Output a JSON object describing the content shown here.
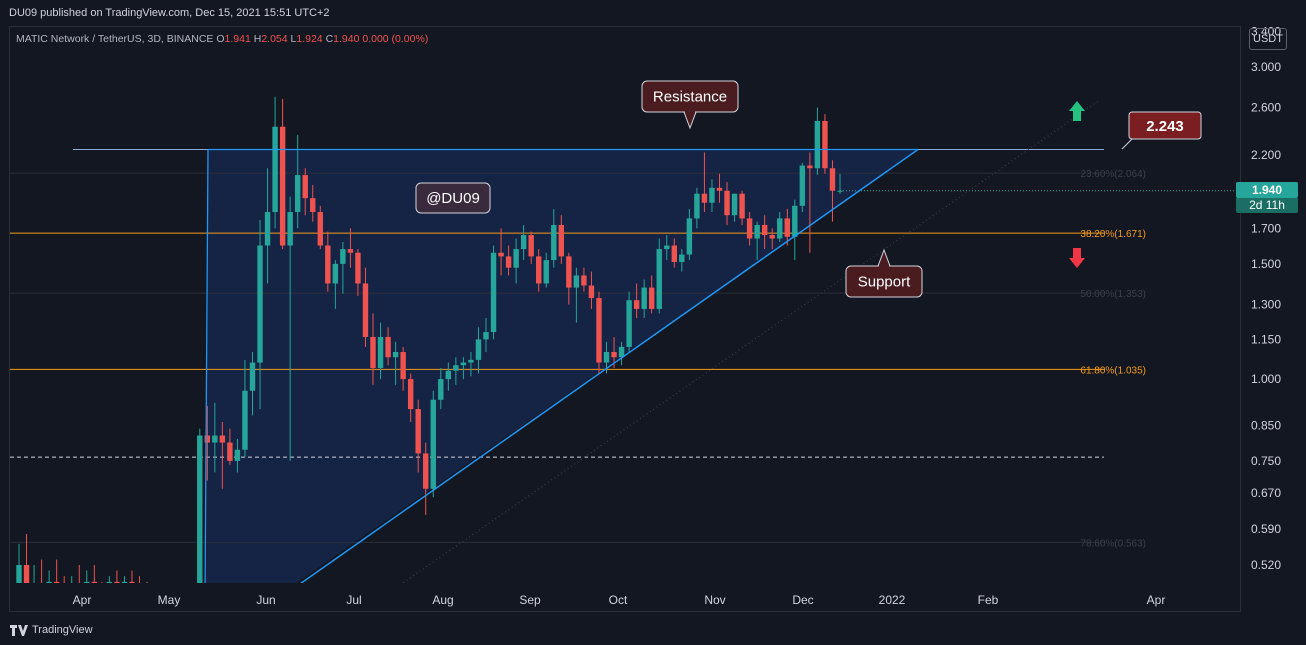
{
  "header": {
    "published": "DU09 published on TradingView.com, Dec 15, 2021 15:51 UTC+2"
  },
  "legend": {
    "symbol": "MATIC Network / TetherUS, 3D, BINANCE",
    "o_label": "O",
    "o": "1.941",
    "h_label": "H",
    "h": "2.054",
    "l_label": "L",
    "l": "1.924",
    "c_label": "C",
    "c": "1.940",
    "chg": "0.000 (0.00%)"
  },
  "currency": "USDT",
  "last_price": "1.940",
  "countdown": "2d 11h",
  "footer": {
    "brand": "TradingView"
  },
  "colors": {
    "bg": "#131722",
    "up": "#26a69a",
    "down": "#ef5350",
    "trend": "#2196f3",
    "fib": "#f59c1a",
    "callout": "#4a1c1f"
  },
  "icons": [
    "arrow-up-icon",
    "arrow-down-icon",
    "tradingview-logo-icon"
  ],
  "chart_data": {
    "type": "candlestick",
    "scale": "log",
    "ylim": [
      0.48,
      3.5
    ],
    "y_ticks": [
      "3.400",
      "3.000",
      "2.600",
      "2.200",
      "1.700",
      "1.500",
      "1.300",
      "1.150",
      "1.000",
      "0.850",
      "0.750",
      "0.670",
      "0.590",
      "0.520"
    ],
    "x_ticks": [
      "Apr",
      "May",
      "Jun",
      "Jul",
      "Aug",
      "Sep",
      "Oct",
      "Nov",
      "Dec",
      "2022",
      "Feb",
      "Apr"
    ],
    "fib_levels": [
      {
        "label": "23.60%(2.064)",
        "value": 2.064
      },
      {
        "label": "38.20%(1.671)",
        "value": 1.671
      },
      {
        "label": "50.00%(1.353)",
        "value": 1.353
      },
      {
        "label": "61.80%(1.035)",
        "value": 1.035
      },
      {
        "label": "78.60%(0.563)",
        "value": 0.563
      }
    ],
    "resistance_level": 2.243,
    "dashed_level": 0.76,
    "annotations": {
      "resistance": "Resistance",
      "support": "Support",
      "watermark": "@DU09",
      "target": "2.243"
    },
    "candles": [
      {
        "o": 0.45,
        "h": 0.56,
        "l": 0.43,
        "c": 0.52
      },
      {
        "o": 0.52,
        "h": 0.58,
        "l": 0.45,
        "c": 0.47
      },
      {
        "o": 0.47,
        "h": 0.52,
        "l": 0.44,
        "c": 0.48
      },
      {
        "o": 0.48,
        "h": 0.53,
        "l": 0.45,
        "c": 0.46
      },
      {
        "o": 0.46,
        "h": 0.51,
        "l": 0.44,
        "c": 0.49
      },
      {
        "o": 0.49,
        "h": 0.53,
        "l": 0.46,
        "c": 0.47
      },
      {
        "o": 0.47,
        "h": 0.5,
        "l": 0.42,
        "c": 0.45
      },
      {
        "o": 0.45,
        "h": 0.5,
        "l": 0.43,
        "c": 0.48
      },
      {
        "o": 0.48,
        "h": 0.52,
        "l": 0.46,
        "c": 0.47
      },
      {
        "o": 0.47,
        "h": 0.51,
        "l": 0.45,
        "c": 0.49
      },
      {
        "o": 0.49,
        "h": 0.52,
        "l": 0.46,
        "c": 0.48
      },
      {
        "o": 0.48,
        "h": 0.49,
        "l": 0.44,
        "c": 0.46
      },
      {
        "o": 0.46,
        "h": 0.5,
        "l": 0.44,
        "c": 0.49
      },
      {
        "o": 0.49,
        "h": 0.51,
        "l": 0.46,
        "c": 0.47
      },
      {
        "o": 0.47,
        "h": 0.5,
        "l": 0.45,
        "c": 0.49
      },
      {
        "o": 0.49,
        "h": 0.51,
        "l": 0.46,
        "c": 0.48
      },
      {
        "o": 0.48,
        "h": 0.5,
        "l": 0.45,
        "c": 0.47
      },
      {
        "o": 0.47,
        "h": 0.49,
        "l": 0.44,
        "c": 0.46
      },
      {
        "o": 0.46,
        "h": 0.48,
        "l": 0.43,
        "c": 0.47
      },
      {
        "o": 0.47,
        "h": 0.48,
        "l": 0.44,
        "c": 0.45
      },
      {
        "o": 0.45,
        "h": 0.47,
        "l": 0.42,
        "c": 0.46
      },
      {
        "o": 0.46,
        "h": 0.47,
        "l": 0.43,
        "c": 0.44
      },
      {
        "o": 0.44,
        "h": 0.46,
        "l": 0.42,
        "c": 0.45
      },
      {
        "o": 0.45,
        "h": 0.46,
        "l": 0.43,
        "c": 0.45
      },
      {
        "o": 0.45,
        "h": 0.84,
        "l": 0.44,
        "c": 0.82
      },
      {
        "o": 0.82,
        "h": 0.91,
        "l": 0.7,
        "c": 0.8
      },
      {
        "o": 0.8,
        "h": 0.92,
        "l": 0.72,
        "c": 0.82
      },
      {
        "o": 0.82,
        "h": 0.86,
        "l": 0.68,
        "c": 0.8
      },
      {
        "o": 0.8,
        "h": 0.84,
        "l": 0.74,
        "c": 0.75
      },
      {
        "o": 0.75,
        "h": 0.81,
        "l": 0.72,
        "c": 0.78
      },
      {
        "o": 0.78,
        "h": 1.07,
        "l": 0.76,
        "c": 0.96
      },
      {
        "o": 0.96,
        "h": 1.1,
        "l": 0.88,
        "c": 1.06
      },
      {
        "o": 1.06,
        "h": 1.75,
        "l": 0.9,
        "c": 1.6
      },
      {
        "o": 1.6,
        "h": 2.1,
        "l": 1.4,
        "c": 1.8
      },
      {
        "o": 1.8,
        "h": 2.7,
        "l": 1.7,
        "c": 2.43
      },
      {
        "o": 2.43,
        "h": 2.68,
        "l": 1.58,
        "c": 1.6
      },
      {
        "o": 1.6,
        "h": 1.9,
        "l": 0.75,
        "c": 1.8
      },
      {
        "o": 1.8,
        "h": 2.36,
        "l": 1.7,
        "c": 2.05
      },
      {
        "o": 2.05,
        "h": 2.1,
        "l": 1.78,
        "c": 1.89
      },
      {
        "o": 1.89,
        "h": 1.98,
        "l": 1.74,
        "c": 1.8
      },
      {
        "o": 1.8,
        "h": 1.84,
        "l": 1.58,
        "c": 1.6
      },
      {
        "o": 1.6,
        "h": 1.68,
        "l": 1.36,
        "c": 1.4
      },
      {
        "o": 1.4,
        "h": 1.52,
        "l": 1.28,
        "c": 1.5
      },
      {
        "o": 1.5,
        "h": 1.62,
        "l": 1.35,
        "c": 1.58
      },
      {
        "o": 1.58,
        "h": 1.7,
        "l": 1.48,
        "c": 1.56
      },
      {
        "o": 1.56,
        "h": 1.58,
        "l": 1.34,
        "c": 1.4
      },
      {
        "o": 1.4,
        "h": 1.48,
        "l": 1.12,
        "c": 1.16
      },
      {
        "o": 1.16,
        "h": 1.26,
        "l": 0.98,
        "c": 1.04
      },
      {
        "o": 1.04,
        "h": 1.22,
        "l": 1.0,
        "c": 1.16
      },
      {
        "o": 1.16,
        "h": 1.2,
        "l": 1.05,
        "c": 1.08
      },
      {
        "o": 1.08,
        "h": 1.14,
        "l": 0.98,
        "c": 1.1
      },
      {
        "o": 1.1,
        "h": 1.12,
        "l": 0.96,
        "c": 1.0
      },
      {
        "o": 1.0,
        "h": 1.02,
        "l": 0.86,
        "c": 0.9
      },
      {
        "o": 0.9,
        "h": 0.93,
        "l": 0.72,
        "c": 0.77
      },
      {
        "o": 0.77,
        "h": 0.8,
        "l": 0.62,
        "c": 0.68
      },
      {
        "o": 0.68,
        "h": 0.96,
        "l": 0.66,
        "c": 0.93
      },
      {
        "o": 0.93,
        "h": 1.04,
        "l": 0.9,
        "c": 1.0
      },
      {
        "o": 1.0,
        "h": 1.06,
        "l": 0.96,
        "c": 1.03
      },
      {
        "o": 1.03,
        "h": 1.08,
        "l": 0.98,
        "c": 1.05
      },
      {
        "o": 1.05,
        "h": 1.08,
        "l": 1.0,
        "c": 1.06
      },
      {
        "o": 1.06,
        "h": 1.1,
        "l": 1.01,
        "c": 1.07
      },
      {
        "o": 1.07,
        "h": 1.2,
        "l": 1.02,
        "c": 1.15
      },
      {
        "o": 1.15,
        "h": 1.24,
        "l": 1.1,
        "c": 1.18
      },
      {
        "o": 1.18,
        "h": 1.6,
        "l": 1.15,
        "c": 1.56
      },
      {
        "o": 1.56,
        "h": 1.7,
        "l": 1.44,
        "c": 1.54
      },
      {
        "o": 1.54,
        "h": 1.6,
        "l": 1.44,
        "c": 1.48
      },
      {
        "o": 1.48,
        "h": 1.64,
        "l": 1.4,
        "c": 1.58
      },
      {
        "o": 1.58,
        "h": 1.72,
        "l": 1.52,
        "c": 1.66
      },
      {
        "o": 1.66,
        "h": 1.68,
        "l": 1.5,
        "c": 1.54
      },
      {
        "o": 1.54,
        "h": 1.58,
        "l": 1.36,
        "c": 1.4
      },
      {
        "o": 1.4,
        "h": 1.56,
        "l": 1.38,
        "c": 1.52
      },
      {
        "o": 1.52,
        "h": 1.82,
        "l": 1.48,
        "c": 1.72
      },
      {
        "o": 1.72,
        "h": 1.78,
        "l": 1.5,
        "c": 1.54
      },
      {
        "o": 1.54,
        "h": 1.56,
        "l": 1.3,
        "c": 1.38
      },
      {
        "o": 1.38,
        "h": 1.48,
        "l": 1.22,
        "c": 1.44
      },
      {
        "o": 1.44,
        "h": 1.48,
        "l": 1.36,
        "c": 1.39
      },
      {
        "o": 1.39,
        "h": 1.46,
        "l": 1.28,
        "c": 1.33
      },
      {
        "o": 1.33,
        "h": 1.36,
        "l": 1.02,
        "c": 1.06
      },
      {
        "o": 1.06,
        "h": 1.14,
        "l": 1.02,
        "c": 1.1
      },
      {
        "o": 1.1,
        "h": 1.16,
        "l": 1.04,
        "c": 1.08
      },
      {
        "o": 1.08,
        "h": 1.14,
        "l": 1.05,
        "c": 1.12
      },
      {
        "o": 1.12,
        "h": 1.36,
        "l": 1.1,
        "c": 1.32
      },
      {
        "o": 1.32,
        "h": 1.4,
        "l": 1.24,
        "c": 1.28
      },
      {
        "o": 1.28,
        "h": 1.42,
        "l": 1.24,
        "c": 1.38
      },
      {
        "o": 1.38,
        "h": 1.44,
        "l": 1.26,
        "c": 1.28
      },
      {
        "o": 1.28,
        "h": 1.64,
        "l": 1.26,
        "c": 1.58
      },
      {
        "o": 1.58,
        "h": 1.66,
        "l": 1.52,
        "c": 1.6
      },
      {
        "o": 1.6,
        "h": 1.64,
        "l": 1.48,
        "c": 1.51
      },
      {
        "o": 1.51,
        "h": 1.58,
        "l": 1.46,
        "c": 1.55
      },
      {
        "o": 1.55,
        "h": 1.82,
        "l": 1.52,
        "c": 1.76
      },
      {
        "o": 1.76,
        "h": 1.96,
        "l": 1.7,
        "c": 1.92
      },
      {
        "o": 1.92,
        "h": 2.22,
        "l": 1.8,
        "c": 1.86
      },
      {
        "o": 1.86,
        "h": 2.02,
        "l": 1.8,
        "c": 1.96
      },
      {
        "o": 1.96,
        "h": 2.06,
        "l": 1.86,
        "c": 1.94
      },
      {
        "o": 1.94,
        "h": 2.0,
        "l": 1.72,
        "c": 1.78
      },
      {
        "o": 1.78,
        "h": 1.92,
        "l": 1.74,
        "c": 1.92
      },
      {
        "o": 1.92,
        "h": 1.94,
        "l": 1.72,
        "c": 1.76
      },
      {
        "o": 1.76,
        "h": 1.8,
        "l": 1.6,
        "c": 1.64
      },
      {
        "o": 1.64,
        "h": 1.74,
        "l": 1.52,
        "c": 1.72
      },
      {
        "o": 1.72,
        "h": 1.78,
        "l": 1.58,
        "c": 1.66
      },
      {
        "o": 1.66,
        "h": 1.7,
        "l": 1.58,
        "c": 1.64
      },
      {
        "o": 1.64,
        "h": 1.8,
        "l": 1.62,
        "c": 1.76
      },
      {
        "o": 1.76,
        "h": 1.82,
        "l": 1.6,
        "c": 1.65
      },
      {
        "o": 1.65,
        "h": 1.88,
        "l": 1.52,
        "c": 1.84
      },
      {
        "o": 1.84,
        "h": 2.14,
        "l": 1.8,
        "c": 2.12
      },
      {
        "o": 2.12,
        "h": 2.22,
        "l": 1.56,
        "c": 2.1
      },
      {
        "o": 2.1,
        "h": 2.6,
        "l": 2.05,
        "c": 2.48
      },
      {
        "o": 2.48,
        "h": 2.54,
        "l": 2.06,
        "c": 2.1
      },
      {
        "o": 2.1,
        "h": 2.16,
        "l": 1.74,
        "c": 1.94
      },
      {
        "o": 1.94,
        "h": 2.06,
        "l": 1.92,
        "c": 1.94
      }
    ]
  }
}
